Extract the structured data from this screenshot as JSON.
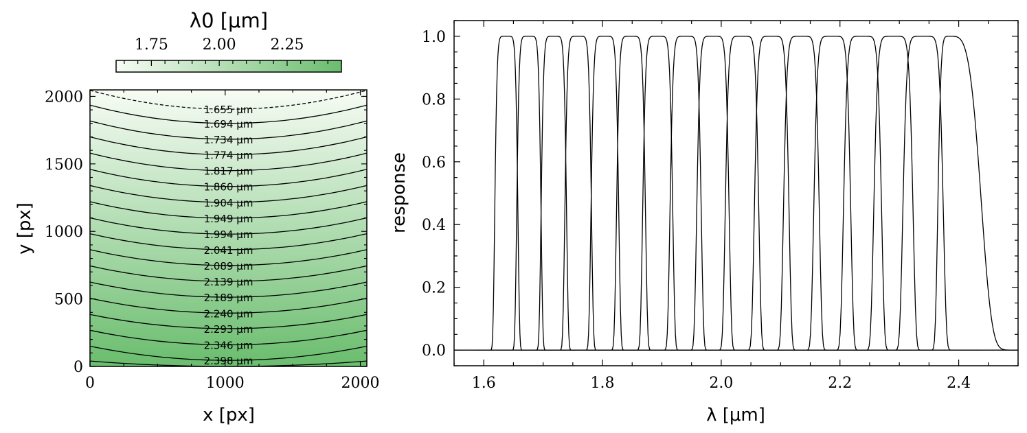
{
  "chart_data": [
    {
      "type": "heatmap",
      "title": "",
      "xlabel": "x [px]",
      "ylabel": "y [px]",
      "xlim": [
        0,
        2048
      ],
      "ylim": [
        0,
        2048
      ],
      "x_ticks": [
        0,
        1000,
        2000
      ],
      "y_ticks": [
        0,
        500,
        1000,
        1500,
        2000
      ],
      "x_tick_labels": [
        "0",
        "1000",
        "2000"
      ],
      "y_tick_labels": [
        "0",
        "500",
        "1000",
        "1500",
        "2000"
      ],
      "colormap": "Greens",
      "colormap_low": "#f7fcf5",
      "colormap_high": "#6abd6e",
      "colorbar": {
        "label": "λ0 [μm]",
        "location": "top",
        "range": [
          1.62,
          2.45
        ],
        "ticks": [
          1.75,
          2.0,
          2.25
        ],
        "tick_labels": [
          "1.75",
          "2.00",
          "2.25"
        ]
      },
      "contours": [
        {
          "value": 1.655,
          "label": "1.655 μm",
          "y_center": 1905,
          "y_edge": 2045,
          "linestyle": "dashed"
        },
        {
          "value": 1.694,
          "label": "1.694 μm",
          "y_center": 1800,
          "y_edge": 1935,
          "linestyle": "solid"
        },
        {
          "value": 1.734,
          "label": "1.734 μm",
          "y_center": 1683,
          "y_edge": 1818,
          "linestyle": "solid"
        },
        {
          "value": 1.774,
          "label": "1.774 μm",
          "y_center": 1568,
          "y_edge": 1700,
          "linestyle": "solid"
        },
        {
          "value": 1.817,
          "label": "1.817 μm",
          "y_center": 1450,
          "y_edge": 1580,
          "linestyle": "solid"
        },
        {
          "value": 1.86,
          "label": "1.860 μm",
          "y_center": 1333,
          "y_edge": 1460,
          "linestyle": "solid"
        },
        {
          "value": 1.904,
          "label": "1.904 μm",
          "y_center": 1215,
          "y_edge": 1340,
          "linestyle": "solid"
        },
        {
          "value": 1.949,
          "label": "1.949 μm",
          "y_center": 1098,
          "y_edge": 1220,
          "linestyle": "solid"
        },
        {
          "value": 1.994,
          "label": "1.994 μm",
          "y_center": 980,
          "y_edge": 1100,
          "linestyle": "solid"
        },
        {
          "value": 2.041,
          "label": "2.041 μm",
          "y_center": 865,
          "y_edge": 983,
          "linestyle": "solid"
        },
        {
          "value": 2.089,
          "label": "2.089 μm",
          "y_center": 748,
          "y_edge": 865,
          "linestyle": "solid"
        },
        {
          "value": 2.139,
          "label": "2.139 μm",
          "y_center": 630,
          "y_edge": 745,
          "linestyle": "solid"
        },
        {
          "value": 2.189,
          "label": "2.189 μm",
          "y_center": 513,
          "y_edge": 625,
          "linestyle": "solid"
        },
        {
          "value": 2.24,
          "label": "2.240 μm",
          "y_center": 395,
          "y_edge": 505,
          "linestyle": "solid"
        },
        {
          "value": 2.293,
          "label": "2.293 μm",
          "y_center": 280,
          "y_edge": 385,
          "linestyle": "solid"
        },
        {
          "value": 2.346,
          "label": "2.346 μm",
          "y_center": 160,
          "y_edge": 268,
          "linestyle": "solid"
        },
        {
          "value": 2.398,
          "label": "2.398 μm",
          "y_center": 45,
          "y_edge": 150,
          "linestyle": "solid"
        },
        {
          "value": 2.45,
          "label": "",
          "y_center": 0,
          "y_edge": 40,
          "linestyle": "solid"
        }
      ]
    },
    {
      "type": "line",
      "title": "",
      "xlabel": "λ [μm]",
      "ylabel": "response",
      "xlim": [
        1.55,
        2.5
      ],
      "ylim": [
        -0.05,
        1.05
      ],
      "x_ticks": [
        1.6,
        1.8,
        2.0,
        2.2,
        2.4
      ],
      "y_ticks": [
        0.0,
        0.2,
        0.4,
        0.6,
        0.8,
        1.0
      ],
      "x_tick_labels": [
        "1.6",
        "1.8",
        "2.0",
        "2.2",
        "2.4"
      ],
      "y_tick_labels": [
        "0.0",
        "0.2",
        "0.4",
        "0.6",
        "0.8",
        "1.0"
      ],
      "grid": false,
      "legend": "none",
      "line_color": "#000000",
      "series": [
        {
          "center": 1.638,
          "width": 0.04
        },
        {
          "center": 1.676,
          "width": 0.042
        },
        {
          "center": 1.718,
          "width": 0.044
        },
        {
          "center": 1.759,
          "width": 0.046
        },
        {
          "center": 1.804,
          "width": 0.048
        },
        {
          "center": 1.848,
          "width": 0.05
        },
        {
          "center": 1.893,
          "width": 0.052
        },
        {
          "center": 1.94,
          "width": 0.054
        },
        {
          "center": 1.986,
          "width": 0.056
        },
        {
          "center": 2.035,
          "width": 0.058
        },
        {
          "center": 2.085,
          "width": 0.06
        },
        {
          "center": 2.135,
          "width": 0.062
        },
        {
          "center": 2.187,
          "width": 0.064
        },
        {
          "center": 2.238,
          "width": 0.066
        },
        {
          "center": 2.29,
          "width": 0.068
        },
        {
          "center": 2.34,
          "width": 0.07
        },
        {
          "center": 2.4,
          "width": 0.06,
          "peak_at": 2.385
        }
      ]
    }
  ]
}
